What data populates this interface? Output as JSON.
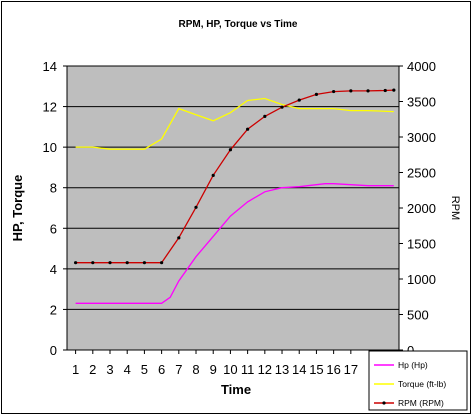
{
  "chart_data": {
    "type": "line",
    "title": "RPM, HP, Torque vs Time",
    "xlabel": "Time",
    "ylabel_left": "HP, Torque",
    "ylabel_right": "RPM",
    "xlim": [
      0.5,
      19.8
    ],
    "ylim_left": [
      0,
      14
    ],
    "ylim_right": [
      0,
      4000
    ],
    "x_ticks": [
      1,
      2,
      3,
      4,
      5,
      6,
      7,
      8,
      9,
      10,
      11,
      12,
      13,
      14,
      15,
      16,
      17
    ],
    "y_ticks_left": [
      0,
      2,
      4,
      6,
      8,
      10,
      12,
      14
    ],
    "y_ticks_right": [
      0,
      500,
      1000,
      1500,
      2000,
      2500,
      3000,
      3500,
      4000
    ],
    "grid": "horizontal",
    "legend_position": "bottom-right",
    "series": [
      {
        "name": "Hp (Hp)",
        "axis": "left",
        "color": "#ff00ff",
        "markers": false,
        "x": [
          1,
          2,
          3,
          4,
          5,
          6,
          6.5,
          7,
          8,
          9,
          10,
          11,
          12,
          13,
          14,
          15,
          15.5,
          16,
          17,
          18,
          19.5
        ],
        "y": [
          2.3,
          2.3,
          2.3,
          2.3,
          2.3,
          2.3,
          2.6,
          3.4,
          4.6,
          5.6,
          6.6,
          7.3,
          7.8,
          8.0,
          8.05,
          8.15,
          8.2,
          8.2,
          8.15,
          8.1,
          8.1
        ]
      },
      {
        "name": "Torque (ft-lb)",
        "axis": "left",
        "color": "#ffff00",
        "markers": false,
        "x": [
          1,
          2,
          3,
          4,
          5,
          6,
          7,
          8,
          9,
          10,
          11,
          12,
          13,
          14,
          15,
          16,
          17,
          18,
          19.5
        ],
        "y": [
          10.0,
          10.0,
          9.9,
          9.9,
          9.9,
          10.4,
          11.9,
          11.6,
          11.3,
          11.7,
          12.3,
          12.4,
          12.1,
          11.9,
          11.9,
          11.9,
          11.8,
          11.8,
          11.75
        ]
      },
      {
        "name": "RPM (RPM)",
        "axis": "right",
        "color": "#cc0000",
        "markers": true,
        "x": [
          1,
          2,
          3,
          4,
          5,
          6,
          7,
          8,
          9,
          10,
          11,
          12,
          13,
          14,
          15,
          16,
          17,
          18,
          19,
          19.5
        ],
        "y": [
          1230,
          1230,
          1230,
          1230,
          1230,
          1230,
          1580,
          2010,
          2460,
          2820,
          3110,
          3290,
          3420,
          3520,
          3600,
          3640,
          3650,
          3650,
          3655,
          3660
        ]
      }
    ]
  }
}
